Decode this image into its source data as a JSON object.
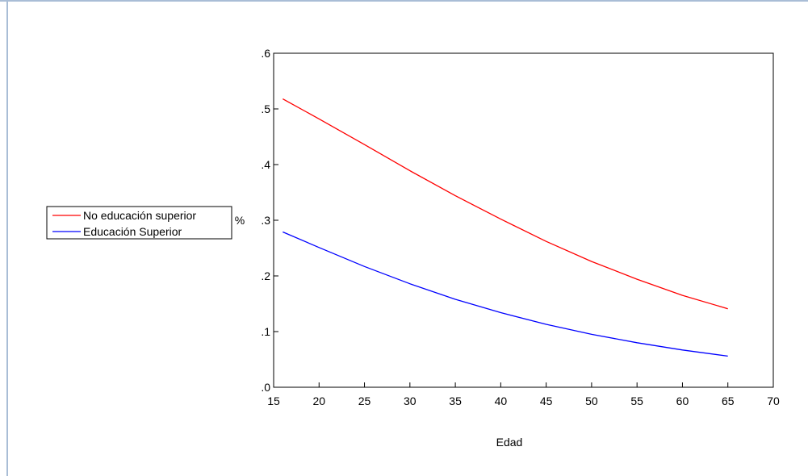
{
  "chart_data": {
    "type": "line",
    "title": "",
    "xlabel": "Edad",
    "ylabel": "%",
    "xlim": [
      15,
      70
    ],
    "ylim": [
      0,
      0.6
    ],
    "xticks": [
      15,
      20,
      25,
      30,
      35,
      40,
      45,
      50,
      55,
      60,
      65,
      70
    ],
    "xtick_labels": [
      "15",
      "20",
      "25",
      "30",
      "35",
      "40",
      "45",
      "50",
      "55",
      "60",
      "65",
      "70"
    ],
    "yticks": [
      0,
      0.1,
      0.2,
      0.3,
      0.4,
      0.5,
      0.6
    ],
    "ytick_labels": [
      ".0",
      ".1",
      ".2",
      ".3",
      ".4",
      ".5",
      ".6"
    ],
    "grid": false,
    "legend_position": "left-outside",
    "series": [
      {
        "name": "No educación superior",
        "color": "#ff0000",
        "x": [
          16,
          20,
          25,
          30,
          35,
          40,
          45,
          50,
          55,
          60,
          65
        ],
        "y": [
          0.518,
          0.482,
          0.436,
          0.389,
          0.344,
          0.302,
          0.262,
          0.226,
          0.194,
          0.165,
          0.141
        ]
      },
      {
        "name": "Educación Superior",
        "color": "#0000ff",
        "x": [
          16,
          20,
          25,
          30,
          35,
          40,
          45,
          50,
          55,
          60,
          65
        ],
        "y": [
          0.279,
          0.251,
          0.217,
          0.186,
          0.158,
          0.134,
          0.113,
          0.095,
          0.08,
          0.067,
          0.056
        ]
      }
    ]
  }
}
